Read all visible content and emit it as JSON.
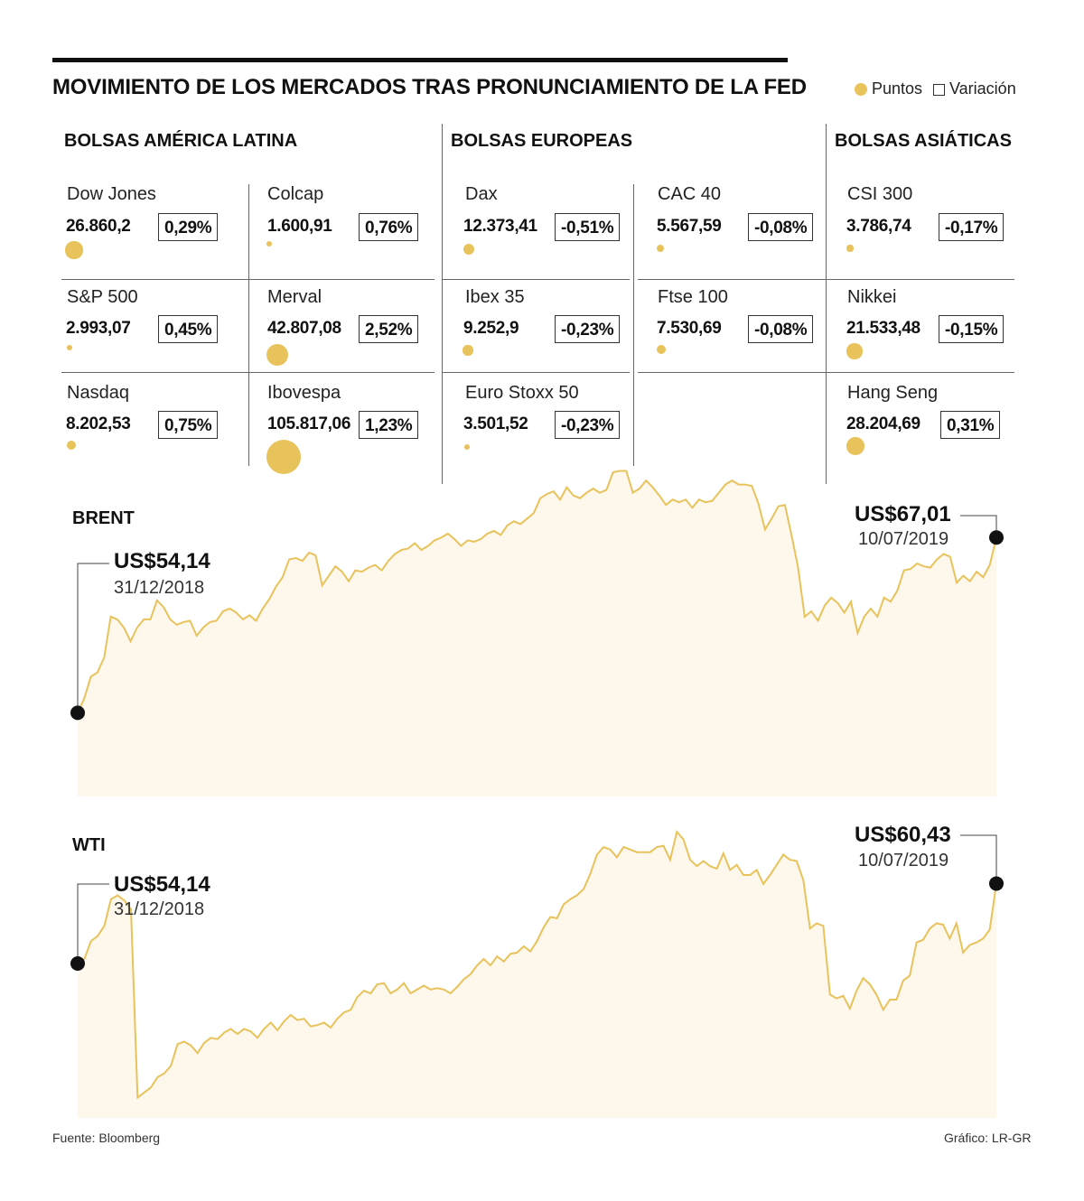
{
  "title": "MOVIMIENTO DE LOS MERCADOS TRAS PRONUNCIAMIENTO DE LA FED",
  "legend": {
    "points": "Puntos",
    "variation": "Variación"
  },
  "colors": {
    "accent": "#e8c35b",
    "area": "#fdf7ec",
    "line": "#e8c35b"
  },
  "sections": {
    "latam": "BOLSAS AMÉRICA LATINA",
    "europe": "BOLSAS EUROPEAS",
    "asia": "BOLSAS ASIÁTICAS"
  },
  "markets": [
    {
      "name": "Dow Jones",
      "value": "26.860,2",
      "variation": "0,29%",
      "points": 26860.2
    },
    {
      "name": "S&P 500",
      "value": "2.993,07",
      "variation": "0,45%",
      "points": 2993.07
    },
    {
      "name": "Nasdaq",
      "value": "8.202,53",
      "variation": "0,75%",
      "points": 8202.53
    },
    {
      "name": "Colcap",
      "value": "1.600,91",
      "variation": "0,76%",
      "points": 1600.91
    },
    {
      "name": "Merval",
      "value": "42.807,08",
      "variation": "2,52%",
      "points": 42807.08
    },
    {
      "name": "Ibovespa",
      "value": "105.817,06",
      "variation": "1,23%",
      "points": 105817.06
    },
    {
      "name": "Dax",
      "value": "12.373,41",
      "variation": "-0,51%",
      "points": 12373.41
    },
    {
      "name": "Ibex 35",
      "value": "9.252,9",
      "variation": "-0,23%",
      "points": 9252.9
    },
    {
      "name": "Euro Stoxx 50",
      "value": "3.501,52",
      "variation": "-0,23%",
      "points": 3501.52
    },
    {
      "name": "CAC 40",
      "value": "5.567,59",
      "variation": "-0,08%",
      "points": 5567.59
    },
    {
      "name": "Ftse 100",
      "value": "7.530,69",
      "variation": "-0,08%",
      "points": 7530.69
    },
    {
      "name": "CSI 300",
      "value": "3.786,74",
      "variation": "-0,17%",
      "points": 3786.74
    },
    {
      "name": "Nikkei",
      "value": "21.533,48",
      "variation": "-0,15%",
      "points": 21533.48
    },
    {
      "name": "Hang Seng",
      "value": "28.204,69",
      "variation": "0,31%",
      "points": 28204.69
    }
  ],
  "chart_data": [
    {
      "type": "area",
      "title": "BRENT",
      "start": {
        "label": "US$54,14",
        "date": "31/12/2018",
        "value": 54.14
      },
      "end": {
        "label": "US$67,01",
        "date": "10/07/2019",
        "value": 67.01
      },
      "ylim": [
        48,
        72
      ],
      "values": [
        54.14,
        55.2,
        56.8,
        57.1,
        58.2,
        61.2,
        61.0,
        60.4,
        59.4,
        60.4,
        61.0,
        61.0,
        62.4,
        61.9,
        61.0,
        60.6,
        60.8,
        60.9,
        59.8,
        60.4,
        60.8,
        60.9,
        61.6,
        61.8,
        61.5,
        61.0,
        61.3,
        60.9,
        61.8,
        62.5,
        63.4,
        64.1,
        65.4,
        65.5,
        65.3,
        65.9,
        65.7,
        63.5,
        64.2,
        64.9,
        64.5,
        63.8,
        64.6,
        64.5,
        64.8,
        65.0,
        64.6,
        65.3,
        65.8,
        66.1,
        66.2,
        66.6,
        66.1,
        66.4,
        66.8,
        67.0,
        67.3,
        66.9,
        66.4,
        66.8,
        66.7,
        66.9,
        67.3,
        67.5,
        67.2,
        67.9,
        68.2,
        68.0,
        68.4,
        68.8,
        69.9,
        70.2,
        70.4,
        69.8,
        70.7,
        70.1,
        69.9,
        70.3,
        70.6,
        70.3,
        70.5,
        71.8,
        71.9,
        71.9,
        70.3,
        70.6,
        71.2,
        70.7,
        70.1,
        69.4,
        69.8,
        69.6,
        69.8,
        69.2,
        69.8,
        69.6,
        69.7,
        70.3,
        70.9,
        71.2,
        70.9,
        70.9,
        70.8,
        69.5,
        67.6,
        68.4,
        69.3,
        69.4,
        67.2,
        64.8,
        61.2,
        61.6,
        60.9,
        62.0,
        62.6,
        62.2,
        61.5,
        62.3,
        60.0,
        61.2,
        61.8,
        61.2,
        62.6,
        62.3,
        63.1,
        64.6,
        64.7,
        65.1,
        64.9,
        64.8,
        65.4,
        65.8,
        65.6,
        63.7,
        64.2,
        63.8,
        64.5,
        64.1,
        65.0,
        67.01
      ]
    },
    {
      "type": "area",
      "title": "WTI",
      "start": {
        "label": "US$54,14",
        "date": "31/12/2018",
        "value": 54.14
      },
      "end": {
        "label": "US$60,43",
        "date": "10/07/2019",
        "value": 60.43
      },
      "ylim": [
        42,
        66
      ],
      "values": [
        54.14,
        54.5,
        55.9,
        56.3,
        57.1,
        59.2,
        59.5,
        59.1,
        58.4,
        43.6,
        44.0,
        44.4,
        45.2,
        45.5,
        46.1,
        47.8,
        48.0,
        47.7,
        47.1,
        47.9,
        48.3,
        48.2,
        48.7,
        49.0,
        48.6,
        49.0,
        48.8,
        48.3,
        49.0,
        49.5,
        48.9,
        49.6,
        50.1,
        49.7,
        49.8,
        49.2,
        49.3,
        49.5,
        49.1,
        49.8,
        50.3,
        50.5,
        51.5,
        52.0,
        51.8,
        52.5,
        52.6,
        51.8,
        52.1,
        52.6,
        51.8,
        52.1,
        52.4,
        52.1,
        52.2,
        52.1,
        51.8,
        52.3,
        52.9,
        53.3,
        54.0,
        54.5,
        54.0,
        54.7,
        54.3,
        54.9,
        55.0,
        55.5,
        55.1,
        55.9,
        57.0,
        57.8,
        57.7,
        58.8,
        59.2,
        59.5,
        60.0,
        61.2,
        62.7,
        63.3,
        63.1,
        62.5,
        63.3,
        63.1,
        62.9,
        62.9,
        62.9,
        63.3,
        63.4,
        62.3,
        64.5,
        63.9,
        62.3,
        61.8,
        62.2,
        61.8,
        61.6,
        62.8,
        61.5,
        61.9,
        61.1,
        61.1,
        61.5,
        60.4,
        61.1,
        61.9,
        62.7,
        62.3,
        62.2,
        60.7,
        56.9,
        57.3,
        57.1,
        51.7,
        51.4,
        51.6,
        50.6,
        52.0,
        53.0,
        52.5,
        51.7,
        50.5,
        51.3,
        51.3,
        52.8,
        53.2,
        55.8,
        56.0,
        56.9,
        57.3,
        57.2,
        56.1,
        57.3,
        55.0,
        55.6,
        55.8,
        56.1,
        56.8,
        60.43
      ]
    }
  ],
  "footer": {
    "source": "Fuente: Bloomberg",
    "credit": "Gráfico: LR-GR"
  }
}
